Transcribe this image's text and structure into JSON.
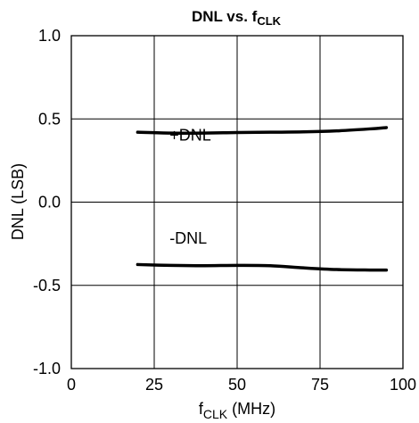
{
  "chart_data": {
    "type": "line",
    "title": "DNL vs. f",
    "title_sub": "CLK",
    "xlabel": "f",
    "xlabel_sub": "CLK",
    "xlabel_suffix": " (MHz)",
    "ylabel": "DNL (LSB)",
    "xlim": [
      0,
      100
    ],
    "ylim": [
      -1.0,
      1.0
    ],
    "xticks": [
      0,
      25,
      50,
      75,
      100
    ],
    "xtick_labels": [
      "0",
      "25",
      "50",
      "75",
      "100"
    ],
    "yticks": [
      1.0,
      0.5,
      0.0,
      -0.5,
      -1.0
    ],
    "ytick_labels": [
      "1.0",
      "0.5",
      "0.0",
      "-0.5",
      "-1.0"
    ],
    "grid": true,
    "series": [
      {
        "name": "+DNL",
        "x": [
          20,
          30,
          40,
          50,
          60,
          70,
          80,
          90,
          95
        ],
        "y": [
          0.42,
          0.415,
          0.415,
          0.418,
          0.42,
          0.422,
          0.428,
          0.44,
          0.448
        ],
        "label_at": [
          35,
          0.37
        ]
      },
      {
        "name": "-DNL",
        "x": [
          20,
          30,
          40,
          50,
          60,
          70,
          80,
          90,
          95
        ],
        "y": [
          -0.375,
          -0.38,
          -0.382,
          -0.38,
          -0.382,
          -0.395,
          -0.405,
          -0.408,
          -0.408
        ],
        "label_at": [
          35,
          -0.25
        ]
      }
    ]
  }
}
